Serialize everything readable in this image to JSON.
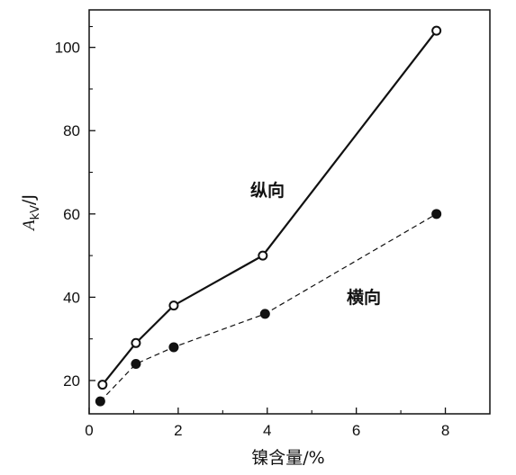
{
  "chart_data": {
    "type": "line",
    "xlabel": "镍含量/%",
    "ylabel_main": "A",
    "ylabel_sub": "kV",
    "ylabel_suffix": "/J",
    "xlim": [
      0,
      9
    ],
    "ylim": [
      12,
      109
    ],
    "xticks": [
      0,
      2,
      4,
      6,
      8
    ],
    "yticks": [
      20,
      40,
      60,
      80,
      100
    ],
    "grid": false,
    "series": [
      {
        "name": "纵向",
        "style": "solid",
        "marker": "open-circle",
        "color": "#111111",
        "x": [
          0.3,
          1.05,
          1.9,
          3.9,
          7.8
        ],
        "y": [
          19,
          29,
          38,
          50,
          104
        ]
      },
      {
        "name": "横向",
        "style": "dashed",
        "marker": "filled-circle",
        "color": "#111111",
        "x": [
          0.25,
          1.05,
          1.9,
          3.95,
          7.8
        ],
        "y": [
          15,
          24,
          28,
          36,
          60
        ]
      }
    ]
  }
}
